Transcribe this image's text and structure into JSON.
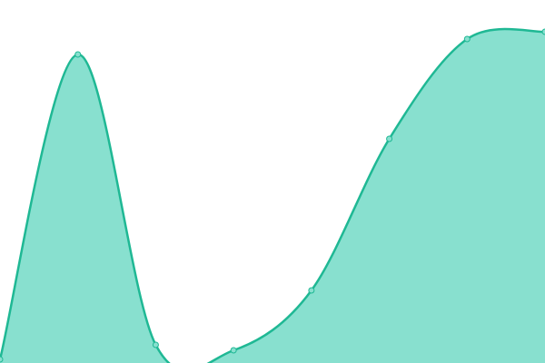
{
  "chart_data": {
    "type": "area",
    "categories": [
      null,
      null,
      null,
      null,
      null,
      null,
      null,
      null
    ],
    "series": [
      {
        "color": "#1fb894",
        "fill": "#88e0cf",
        "values": [
          4,
          340,
          20,
          14,
          80,
          247,
          357,
          365
        ]
      }
    ],
    "ylim": [
      0,
      400
    ],
    "smooth": true,
    "markers": true
  }
}
